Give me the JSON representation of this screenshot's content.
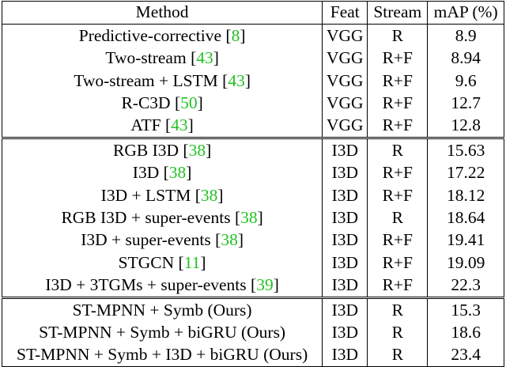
{
  "table": {
    "headers": {
      "method": "Method",
      "feat": "Feat",
      "stream": "Stream",
      "map": "mAP (%)"
    },
    "groups": [
      [
        {
          "method": "Predictive-corrective",
          "cite": "8",
          "feat": "VGG",
          "stream": "R",
          "map": "8.9"
        },
        {
          "method": "Two-stream",
          "cite": "43",
          "feat": "VGG",
          "stream": "R+F",
          "map": "8.94"
        },
        {
          "method": "Two-stream + LSTM",
          "cite": "43",
          "feat": "VGG",
          "stream": "R+F",
          "map": "9.6"
        },
        {
          "method": "R-C3D",
          "cite": "50",
          "feat": "VGG",
          "stream": "R+F",
          "map": "12.7"
        },
        {
          "method": "ATF",
          "cite": "43",
          "feat": "VGG",
          "stream": "R+F",
          "map": "12.8"
        }
      ],
      [
        {
          "method": "RGB I3D",
          "cite": "38",
          "feat": "I3D",
          "stream": "R",
          "map": "15.63"
        },
        {
          "method": "I3D",
          "cite": "38",
          "feat": "I3D",
          "stream": "R+F",
          "map": "17.22"
        },
        {
          "method": "I3D + LSTM",
          "cite": "38",
          "feat": "I3D",
          "stream": "R+F",
          "map": "18.12"
        },
        {
          "method": "RGB I3D + super-events",
          "cite": "38",
          "feat": "I3D",
          "stream": "R",
          "map": "18.64"
        },
        {
          "method": "I3D + super-events",
          "cite": "38",
          "feat": "I3D",
          "stream": "R+F",
          "map": "19.41"
        },
        {
          "method": "STGCN",
          "cite": "11",
          "feat": "I3D",
          "stream": "R+F",
          "map": "19.09"
        },
        {
          "method": "I3D + 3TGMs + super-events",
          "cite": "39",
          "feat": "I3D",
          "stream": "R+F",
          "map": "22.3"
        }
      ],
      [
        {
          "method": "ST-MPNN + Symb (Ours)",
          "feat": "I3D",
          "stream": "R",
          "map": "15.3"
        },
        {
          "method": "ST-MPNN + Symb + biGRU (Ours)",
          "feat": "I3D",
          "stream": "R",
          "map": "18.6"
        },
        {
          "method": "ST-MPNN + Symb + I3D + biGRU (Ours)",
          "feat": "I3D",
          "stream": "R",
          "map": "23.4",
          "best": true
        }
      ]
    ]
  }
}
